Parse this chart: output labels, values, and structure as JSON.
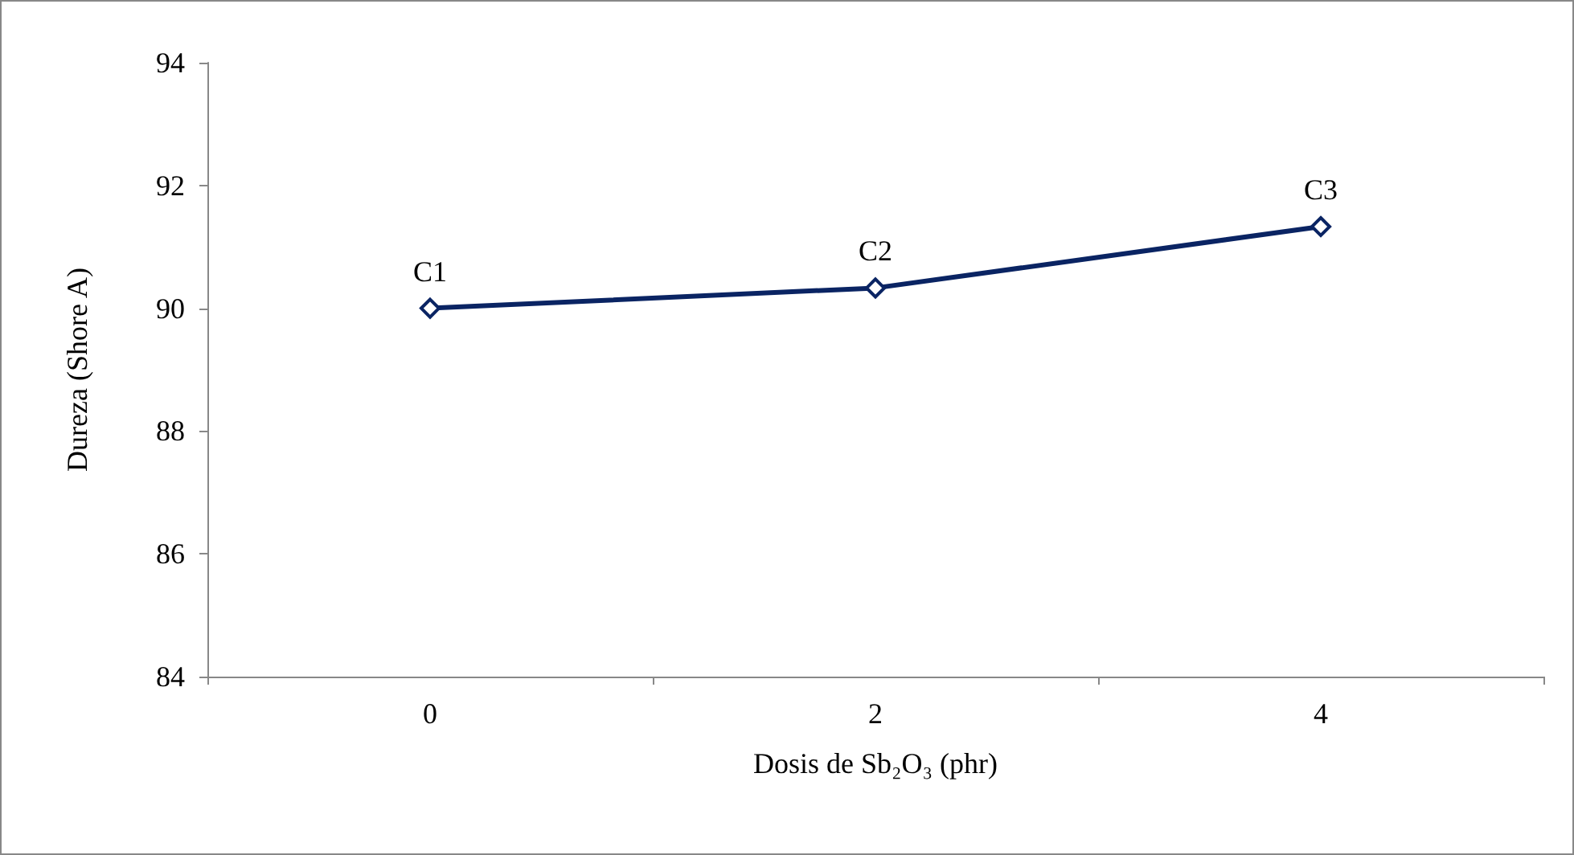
{
  "chart_data": {
    "type": "line",
    "xlabel": "Dosis de Sb₂O₃ (phr)",
    "ylabel": "Dureza (Shore A)",
    "categories": [
      "0",
      "2",
      "4"
    ],
    "series": [
      {
        "color": "#0a2463",
        "values": [
          90,
          90.33,
          91.33
        ]
      }
    ],
    "ylim": [
      84,
      94
    ],
    "yticks": [
      84,
      86,
      88,
      90,
      92,
      94
    ],
    "grid": false,
    "marker": "diamond",
    "line_style": "solid",
    "annotations": [
      {
        "text": "C1",
        "x": "0",
        "y": 90
      },
      {
        "text": "C2",
        "x": "2",
        "y": 90.33
      },
      {
        "text": "C3",
        "x": "4",
        "y": 91.33
      }
    ]
  }
}
